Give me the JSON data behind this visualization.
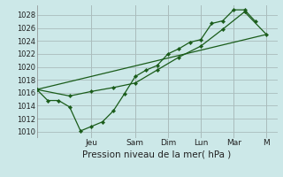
{
  "background_color": "#cce8e8",
  "grid_color": "#aabcbc",
  "line_color": "#1a5c1a",
  "marker_color": "#1a5c1a",
  "xlabel": "Pression niveau de la mer( hPa )",
  "ylim": [
    1009,
    1029.5
  ],
  "yticks": [
    1010,
    1012,
    1014,
    1016,
    1018,
    1020,
    1022,
    1024,
    1026,
    1028
  ],
  "xlim": [
    0,
    11.0
  ],
  "day_labels": [
    "Jeu",
    "Sam",
    "Dim",
    "Lun",
    "Mar",
    "M"
  ],
  "day_positions": [
    2.5,
    4.5,
    6.0,
    7.5,
    9.0,
    10.5
  ],
  "line1_x": [
    0.0,
    0.5,
    1.0,
    1.5,
    2.0,
    2.5,
    3.0,
    3.5,
    4.0,
    4.5,
    5.0,
    5.5,
    6.0,
    6.5,
    7.0,
    7.5,
    8.0,
    8.5,
    9.0,
    9.5,
    10.0
  ],
  "line1_y": [
    1016.5,
    1014.8,
    1014.8,
    1013.8,
    1010.1,
    1010.8,
    1011.5,
    1013.2,
    1015.8,
    1018.5,
    1019.5,
    1020.2,
    1022.0,
    1022.8,
    1023.8,
    1024.2,
    1026.7,
    1027.1,
    1028.8,
    1028.8,
    1027.0
  ],
  "line2_x": [
    0.0,
    1.5,
    2.5,
    3.5,
    4.5,
    5.5,
    6.5,
    7.5,
    8.5,
    9.5,
    10.5
  ],
  "line2_y": [
    1016.5,
    1015.5,
    1016.2,
    1016.8,
    1017.5,
    1019.5,
    1021.5,
    1023.2,
    1025.8,
    1028.5,
    1025.0
  ],
  "line3_x": [
    0.0,
    10.5
  ],
  "line3_y": [
    1016.5,
    1025.0
  ]
}
